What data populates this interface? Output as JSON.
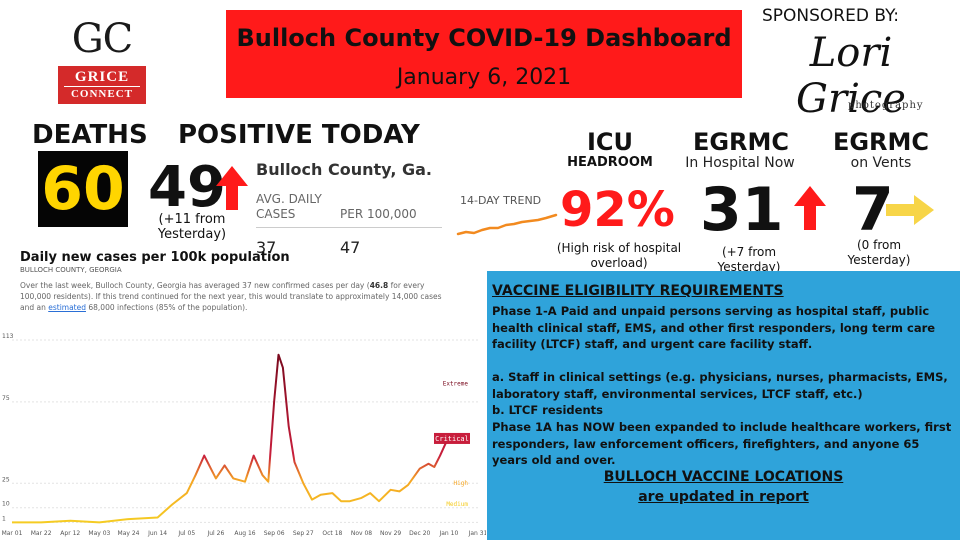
{
  "logo": {
    "initials": "GC",
    "line1": "GRICE",
    "line2": "CONNECT",
    "color": "#d42a2a"
  },
  "header": {
    "title": "Bulloch County COVID-19 Dashboard",
    "date": "January 6, 2021",
    "background": "#ff1a1a"
  },
  "sponsor": {
    "label": "SPONSORED BY:",
    "name": "Lori Grice",
    "tagline": "photography"
  },
  "deaths": {
    "label": "DEATHS",
    "value": "60"
  },
  "positive_today": {
    "label": "POSITIVE TODAY",
    "value": "49",
    "arrow": "up-arrow-icon",
    "change_line1": "(+11 from",
    "change_line2": "Yesterday)"
  },
  "stats": {
    "location": "Bulloch County, Ga.",
    "col1_header_l1": "AVG. DAILY",
    "col1_header_l2": "CASES",
    "col2_header": "PER 100,000",
    "col1_value": "37",
    "col2_value": "47",
    "trend_label": "14-DAY TREND",
    "trend_color": "#f28a1f"
  },
  "icu": {
    "label": "ICU",
    "sublabel": "HEADROOM",
    "value": "92%",
    "note_line1": "(High risk of hospital",
    "note_line2": "overload)",
    "color": "#ff1a1a"
  },
  "hospital": {
    "label": "EGRMC",
    "sublabel": "In Hospital Now",
    "value": "31",
    "arrow": "up-arrow-icon",
    "change_line1": "(+7 from",
    "change_line2": "Yesterday)"
  },
  "vents": {
    "label": "EGRMC",
    "sublabel": "on Vents",
    "value": "7",
    "arrow": "right-arrow-icon",
    "change_line1": "(0 from",
    "change_line2": "Yesterday)",
    "arrow_color": "#f7d548"
  },
  "chart_text": {
    "title": "Daily new cases per 100k population",
    "subtitle": "BULLOCH COUNTY, GEORGIA",
    "desc_1": "Over the last week, Bulloch County, Georgia has averaged 37 new confirmed cases per day (",
    "desc_bold": "46.8",
    "desc_2": " for every 100,000 residents). If this trend continued for the next year, this would translate to approximately 14,000 cases and an ",
    "desc_link": "estimated",
    "desc_3": " 68,000 infections (85% of the population)."
  },
  "chart_data": {
    "type": "line",
    "title": "Daily new cases per 100k population",
    "y_ticks": [
      1,
      10,
      25,
      75,
      113
    ],
    "ylim": [
      0,
      113
    ],
    "x_ticks": [
      "Mar 01",
      "Mar 22",
      "Apr 12",
      "May 03",
      "May 24",
      "Jun 14",
      "Jul 05",
      "Jul 26",
      "Aug 16",
      "Sep 06",
      "Sep 27",
      "Oct 18",
      "Nov 08",
      "Nov 29",
      "Dec 20",
      "Jan 10",
      "Jan 31"
    ],
    "risk_levels": [
      "Extreme",
      "Critical",
      "High",
      "Medium"
    ],
    "risk_colors": {
      "Extreme": "#7a0a1e",
      "Critical": "#c81e3c",
      "High": "#f5a623",
      "Medium": "#f5cc23"
    },
    "series": [
      {
        "x": [
          0,
          1,
          2,
          3,
          4,
          5,
          5.5,
          6,
          6.3,
          6.6,
          7,
          7.3,
          7.6,
          8,
          8.3,
          8.6,
          8.8,
          9.0,
          9.15,
          9.3,
          9.5,
          9.7,
          10,
          10.3,
          10.6,
          11,
          11.3,
          11.6,
          12,
          12.3,
          12.6,
          13,
          13.3,
          13.6,
          14,
          14.3,
          14.5,
          14.7,
          14.9
        ],
        "values": [
          1,
          1,
          2,
          1,
          3,
          4,
          12,
          19,
          30,
          42,
          28,
          36,
          28,
          26,
          42,
          30,
          26,
          75,
          104,
          96,
          60,
          38,
          25,
          15,
          18,
          19,
          14,
          14,
          16,
          19,
          14,
          21,
          20,
          24,
          34,
          37,
          35,
          42,
          50
        ]
      }
    ]
  }
}
